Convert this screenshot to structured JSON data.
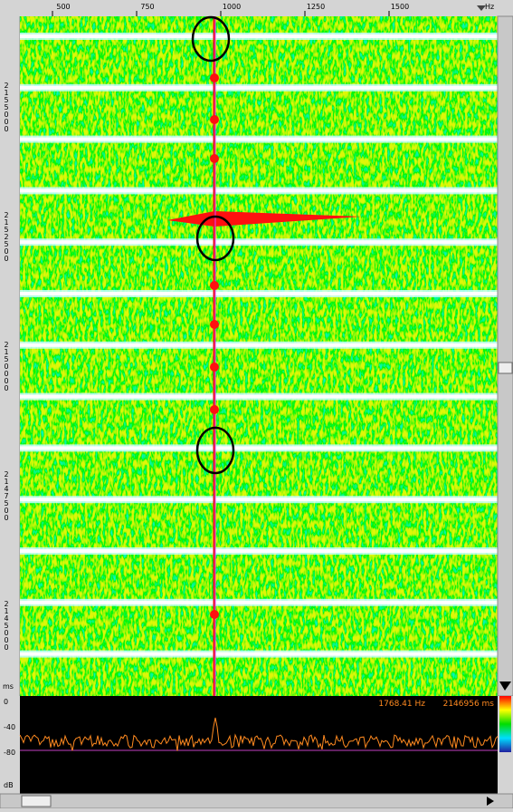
{
  "top_axis": {
    "ticks": [
      "500",
      "750",
      "1000",
      "1250",
      "1500"
    ],
    "unit": "Hz"
  },
  "left_axis": {
    "ticks": [
      "2155000",
      "2152500",
      "2150000",
      "2147500",
      "2145000"
    ],
    "unit": "ms"
  },
  "spectrum": {
    "ticks": [
      "0",
      "-40",
      "-80"
    ],
    "unit": "dB"
  },
  "readout": {
    "frequency": "1768.41 Hz",
    "time": "2146956 ms"
  }
}
